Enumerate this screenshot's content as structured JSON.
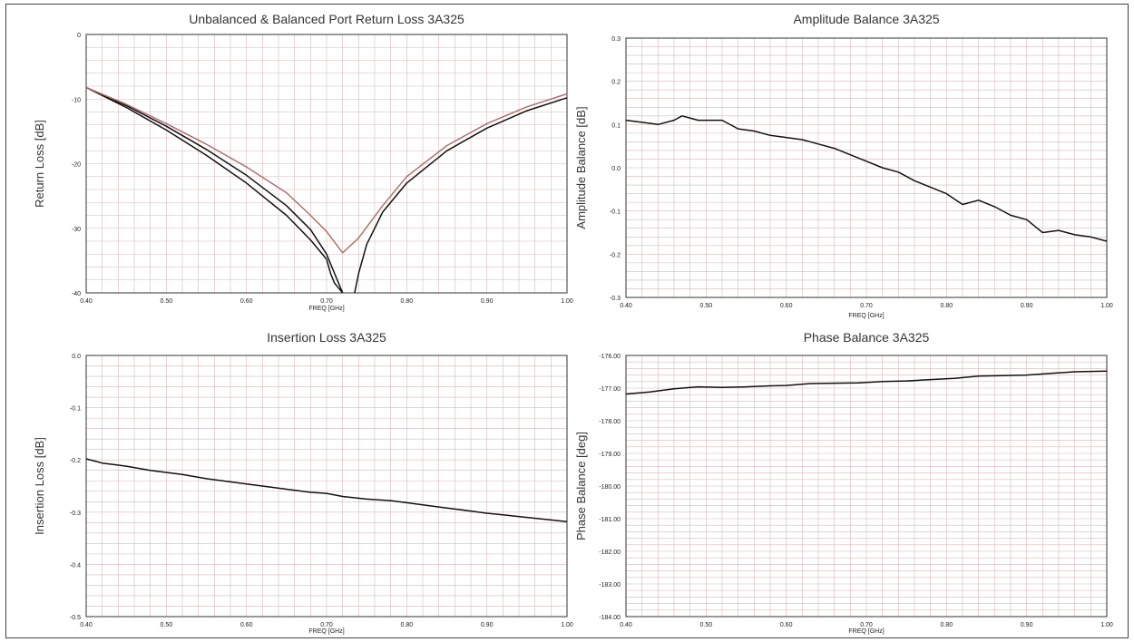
{
  "chart_data": [
    {
      "id": "return-loss",
      "type": "line",
      "title": "Unbalanced & Balanced Port Return Loss 3A325",
      "xlabel": "FREQ [GHz]",
      "ylabel": "Return Loss [dB]",
      "xlim": [
        0.4,
        1.0
      ],
      "ylim": [
        -40,
        0
      ],
      "xticks": [
        0.4,
        0.5,
        0.6,
        0.7,
        0.8,
        0.9,
        1.0
      ],
      "xtick_labels": [
        "0.40",
        "0.50",
        "0.60",
        "0.70",
        "0.80",
        "0.90",
        "1.00"
      ],
      "yticks": [
        0,
        -10,
        -20,
        -30,
        -40
      ],
      "ytick_labels": [
        "0",
        "-10",
        "-20",
        "-30",
        "-40"
      ],
      "grid": true,
      "series": [
        {
          "color": "#111111",
          "x": [
            0.4,
            0.45,
            0.5,
            0.55,
            0.6,
            0.65,
            0.68,
            0.7,
            0.71,
            0.72
          ],
          "y": [
            -8.2,
            -11.0,
            -14.2,
            -17.8,
            -21.8,
            -26.5,
            -30.2,
            -34.0,
            -37.0,
            -40.0
          ]
        },
        {
          "color": "#111111",
          "x": [
            0.7,
            0.705,
            0.71,
            0.72
          ],
          "y": [
            -34.8,
            -37.0,
            -38.5,
            -40.0
          ]
        },
        {
          "color": "#111111",
          "x": [
            0.735,
            0.74,
            0.75,
            0.77,
            0.8,
            0.85,
            0.9,
            0.95,
            1.0
          ],
          "y": [
            -40.0,
            -37.0,
            -32.5,
            -27.5,
            -23.0,
            -18.0,
            -14.5,
            -11.8,
            -9.8
          ]
        },
        {
          "color": "#111111",
          "x": [
            0.4,
            0.45,
            0.5,
            0.55,
            0.6,
            0.65,
            0.68,
            0.7
          ],
          "y": [
            -8.2,
            -11.3,
            -14.8,
            -18.7,
            -23.0,
            -28.0,
            -31.8,
            -34.8
          ]
        },
        {
          "color": "#b07070",
          "x": [
            0.4,
            0.45,
            0.5,
            0.55,
            0.6,
            0.65,
            0.68,
            0.7,
            0.72,
            0.74,
            0.77,
            0.8,
            0.85,
            0.9,
            0.95,
            1.0
          ],
          "y": [
            -8.2,
            -10.8,
            -13.8,
            -17.0,
            -20.5,
            -24.5,
            -28.0,
            -30.5,
            -33.8,
            -31.5,
            -26.5,
            -22.0,
            -17.2,
            -13.8,
            -11.2,
            -9.2
          ]
        }
      ]
    },
    {
      "id": "amplitude-balance",
      "type": "line",
      "title": "Amplitude Balance 3A325",
      "xlabel": "FREQ [GHz]",
      "ylabel": "Amplitude Balance [dB]",
      "xlim": [
        0.4,
        1.0
      ],
      "ylim": [
        -0.3,
        0.3
      ],
      "xticks": [
        0.4,
        0.5,
        0.6,
        0.7,
        0.8,
        0.9,
        1.0
      ],
      "xtick_labels": [
        "0.40",
        "0.50",
        "0.60",
        "0.70",
        "0.80",
        "0.90",
        "1.00"
      ],
      "yticks": [
        0.3,
        0.2,
        0.1,
        0.0,
        -0.1,
        -0.2,
        -0.3
      ],
      "ytick_labels": [
        "0.3",
        "0.2",
        "0.1",
        "0.0",
        "-0.1",
        "-0.2",
        "-0.3"
      ],
      "grid": true,
      "series": [
        {
          "color": "#111111",
          "x": [
            0.4,
            0.42,
            0.44,
            0.46,
            0.47,
            0.49,
            0.52,
            0.54,
            0.56,
            0.58,
            0.6,
            0.62,
            0.64,
            0.66,
            0.68,
            0.7,
            0.72,
            0.74,
            0.76,
            0.78,
            0.8,
            0.82,
            0.84,
            0.86,
            0.88,
            0.9,
            0.92,
            0.94,
            0.96,
            0.98,
            1.0
          ],
          "y": [
            0.11,
            0.105,
            0.1,
            0.11,
            0.12,
            0.11,
            0.11,
            0.09,
            0.085,
            0.075,
            0.07,
            0.065,
            0.055,
            0.045,
            0.03,
            0.015,
            0.0,
            -0.01,
            -0.03,
            -0.045,
            -0.06,
            -0.085,
            -0.075,
            -0.09,
            -0.11,
            -0.12,
            -0.15,
            -0.145,
            -0.155,
            -0.16,
            -0.17
          ]
        }
      ]
    },
    {
      "id": "insertion-loss",
      "type": "line",
      "title": "Insertion Loss 3A325",
      "xlabel": "FREQ [GHz]",
      "ylabel": "Insertion Loss [dB]",
      "xlim": [
        0.4,
        1.0
      ],
      "ylim": [
        -0.5,
        0.0
      ],
      "xticks": [
        0.4,
        0.5,
        0.6,
        0.7,
        0.8,
        0.9,
        1.0
      ],
      "xtick_labels": [
        "0.40",
        "0.50",
        "0.60",
        "0.70",
        "0.80",
        "0.90",
        "1.00"
      ],
      "yticks": [
        0.0,
        -0.1,
        -0.2,
        -0.3,
        -0.4,
        -0.5
      ],
      "ytick_labels": [
        "0.0",
        "-0.1",
        "-0.2",
        "-0.3",
        "-0.4",
        "-0.5"
      ],
      "grid": true,
      "series": [
        {
          "color": "#111111",
          "x": [
            0.4,
            0.42,
            0.45,
            0.48,
            0.5,
            0.52,
            0.55,
            0.58,
            0.6,
            0.62,
            0.65,
            0.68,
            0.7,
            0.72,
            0.75,
            0.78,
            0.8,
            0.82,
            0.85,
            0.88,
            0.9,
            0.92,
            0.95,
            0.98,
            1.0
          ],
          "y": [
            -0.198,
            -0.206,
            -0.212,
            -0.22,
            -0.224,
            -0.228,
            -0.236,
            -0.242,
            -0.246,
            -0.25,
            -0.256,
            -0.262,
            -0.264,
            -0.27,
            -0.275,
            -0.278,
            -0.282,
            -0.286,
            -0.292,
            -0.298,
            -0.302,
            -0.305,
            -0.31,
            -0.315,
            -0.318
          ]
        }
      ]
    },
    {
      "id": "phase-balance",
      "type": "line",
      "title": "Phase Balance 3A325",
      "xlabel": "FREQ [GHz]",
      "ylabel": "Phase Balance [deg]",
      "xlim": [
        0.4,
        1.0
      ],
      "ylim": [
        -184.0,
        -176.0
      ],
      "xticks": [
        0.4,
        0.5,
        0.6,
        0.7,
        0.8,
        0.9,
        1.0
      ],
      "xtick_labels": [
        "0.40",
        "0.50",
        "0.60",
        "0.70",
        "0.80",
        "0.90",
        "1.00"
      ],
      "yticks": [
        -176.0,
        -177.0,
        -178.0,
        -179.0,
        -180.0,
        -181.0,
        -182.0,
        -183.0,
        -184.0
      ],
      "ytick_labels": [
        "-176.00",
        "-177.00",
        "-178.00",
        "-179.00",
        "-180.00",
        "-181.00",
        "-182.00",
        "-183.00",
        "-184.00"
      ],
      "grid": true,
      "series": [
        {
          "color": "#111111",
          "x": [
            0.4,
            0.43,
            0.46,
            0.49,
            0.52,
            0.55,
            0.58,
            0.6,
            0.63,
            0.66,
            0.69,
            0.72,
            0.75,
            0.78,
            0.81,
            0.84,
            0.87,
            0.9,
            0.93,
            0.96,
            1.0
          ],
          "y": [
            -177.18,
            -177.12,
            -177.02,
            -176.96,
            -176.98,
            -176.96,
            -176.93,
            -176.92,
            -176.86,
            -176.85,
            -176.84,
            -176.8,
            -176.78,
            -176.74,
            -176.7,
            -176.63,
            -176.62,
            -176.6,
            -176.55,
            -176.5,
            -176.48
          ]
        }
      ]
    }
  ]
}
